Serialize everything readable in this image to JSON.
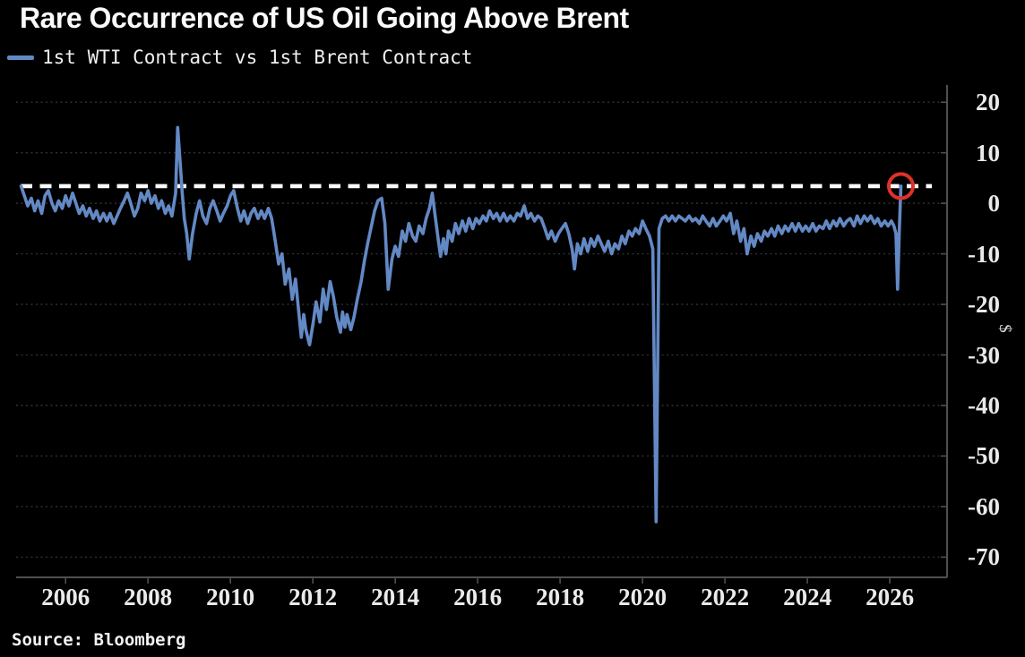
{
  "header": {
    "title": "Rare Occurrence of US Oil Going Above Brent"
  },
  "legend": {
    "label": "1st WTI Contract vs 1st Brent Contract",
    "swatch_color": "#6389c5"
  },
  "footer": {
    "source": "Source: Bloomberg"
  },
  "colors": {
    "background": "#000000",
    "line": "#6389c5",
    "reference_dash": "#fafafa",
    "gridline": "#333333",
    "axis": "#4f4f4f",
    "tick_label": "#eaeaea",
    "highlight_circle": "#e03127"
  },
  "chart_data": {
    "type": "line",
    "title": "Rare Occurrence of US Oil Going Above Brent",
    "ylabel": "$",
    "xlabel": "",
    "legend_position": "top-left",
    "grid": "dotted-horizontal",
    "xlim": [
      2004.8,
      2027.39
    ],
    "ylim": [
      -74,
      23.4
    ],
    "x_ticks": [
      2006,
      2008,
      2010,
      2012,
      2014,
      2016,
      2018,
      2020,
      2022,
      2024,
      2026
    ],
    "y_ticks": [
      20,
      10,
      0,
      -10,
      -20,
      -30,
      -40,
      -50,
      -60,
      -70
    ],
    "reference_line": {
      "value": 3.4,
      "style": "dashed",
      "color": "#fafafa"
    },
    "highlight_point": {
      "x": 2026.27,
      "y": 3.4,
      "marker": "red-circle"
    },
    "annotations": [
      "2008 spike to +15",
      "2011-2012 trough near -28",
      "April 2020 collapse to -63",
      "final point jumps to +3.4 above Brent"
    ],
    "series": [
      {
        "name": "1st WTI Contract vs 1st Brent Contract",
        "color": "#6389c5",
        "points": [
          [
            2004.92,
            3.4
          ],
          [
            2005.0,
            1.5
          ],
          [
            2005.08,
            -0.5
          ],
          [
            2005.17,
            1.0
          ],
          [
            2005.25,
            -1.5
          ],
          [
            2005.33,
            0.5
          ],
          [
            2005.42,
            -2.0
          ],
          [
            2005.5,
            1.5
          ],
          [
            2005.58,
            2.5
          ],
          [
            2005.67,
            0.0
          ],
          [
            2005.75,
            -1.5
          ],
          [
            2005.83,
            0.5
          ],
          [
            2005.92,
            -1.0
          ],
          [
            2006.0,
            1.5
          ],
          [
            2006.08,
            -0.5
          ],
          [
            2006.17,
            2.0
          ],
          [
            2006.25,
            0.0
          ],
          [
            2006.33,
            -2.0
          ],
          [
            2006.42,
            -0.5
          ],
          [
            2006.5,
            -2.5
          ],
          [
            2006.58,
            -1.0
          ],
          [
            2006.67,
            -3.0
          ],
          [
            2006.75,
            -1.5
          ],
          [
            2006.83,
            -3.5
          ],
          [
            2006.92,
            -2.0
          ],
          [
            2007.0,
            -3.5
          ],
          [
            2007.08,
            -2.0
          ],
          [
            2007.17,
            -4.0
          ],
          [
            2007.25,
            -2.5
          ],
          [
            2007.33,
            -1.0
          ],
          [
            2007.42,
            0.5
          ],
          [
            2007.5,
            2.0
          ],
          [
            2007.58,
            0.0
          ],
          [
            2007.67,
            -2.5
          ],
          [
            2007.75,
            -1.0
          ],
          [
            2007.83,
            2.0
          ],
          [
            2007.92,
            0.5
          ],
          [
            2008.0,
            2.5
          ],
          [
            2008.08,
            0.0
          ],
          [
            2008.17,
            1.5
          ],
          [
            2008.25,
            -1.0
          ],
          [
            2008.33,
            0.5
          ],
          [
            2008.42,
            -2.0
          ],
          [
            2008.5,
            -0.5
          ],
          [
            2008.58,
            -2.5
          ],
          [
            2008.67,
            2.0
          ],
          [
            2008.72,
            15.0
          ],
          [
            2008.78,
            8.0
          ],
          [
            2008.83,
            2.0
          ],
          [
            2008.88,
            -3.0
          ],
          [
            2008.94,
            -6.0
          ],
          [
            2009.0,
            -11.0
          ],
          [
            2009.08,
            -6.0
          ],
          [
            2009.17,
            -2.0
          ],
          [
            2009.25,
            0.5
          ],
          [
            2009.33,
            -2.5
          ],
          [
            2009.42,
            -4.0
          ],
          [
            2009.5,
            -1.0
          ],
          [
            2009.58,
            0.5
          ],
          [
            2009.67,
            -1.5
          ],
          [
            2009.75,
            -3.5
          ],
          [
            2009.83,
            -2.0
          ],
          [
            2009.92,
            -0.5
          ],
          [
            2010.0,
            1.5
          ],
          [
            2010.08,
            2.5
          ],
          [
            2010.17,
            -1.0
          ],
          [
            2010.25,
            -3.5
          ],
          [
            2010.33,
            -1.5
          ],
          [
            2010.42,
            -4.0
          ],
          [
            2010.5,
            -2.0
          ],
          [
            2010.58,
            -1.0
          ],
          [
            2010.67,
            -3.0
          ],
          [
            2010.75,
            -1.5
          ],
          [
            2010.83,
            -3.0
          ],
          [
            2010.92,
            -1.0
          ],
          [
            2011.0,
            -3.0
          ],
          [
            2011.08,
            -7.0
          ],
          [
            2011.17,
            -12.0
          ],
          [
            2011.25,
            -10.0
          ],
          [
            2011.33,
            -16.0
          ],
          [
            2011.42,
            -13.0
          ],
          [
            2011.5,
            -19.0
          ],
          [
            2011.58,
            -15.0
          ],
          [
            2011.67,
            -22.5
          ],
          [
            2011.72,
            -26.5
          ],
          [
            2011.78,
            -22.0
          ],
          [
            2011.83,
            -25.0
          ],
          [
            2011.92,
            -28.0
          ],
          [
            2012.0,
            -24.0
          ],
          [
            2012.08,
            -19.5
          ],
          [
            2012.17,
            -23.5
          ],
          [
            2012.25,
            -17.0
          ],
          [
            2012.33,
            -21.0
          ],
          [
            2012.42,
            -15.5
          ],
          [
            2012.5,
            -18.5
          ],
          [
            2012.58,
            -22.5
          ],
          [
            2012.67,
            -25.5
          ],
          [
            2012.72,
            -21.5
          ],
          [
            2012.78,
            -24.5
          ],
          [
            2012.83,
            -22.0
          ],
          [
            2012.92,
            -25.0
          ],
          [
            2013.0,
            -22.5
          ],
          [
            2013.08,
            -19.0
          ],
          [
            2013.17,
            -15.5
          ],
          [
            2013.25,
            -11.5
          ],
          [
            2013.33,
            -8.0
          ],
          [
            2013.42,
            -4.5
          ],
          [
            2013.5,
            -1.5
          ],
          [
            2013.58,
            0.5
          ],
          [
            2013.67,
            1.0
          ],
          [
            2013.75,
            -4.0
          ],
          [
            2013.83,
            -17.0
          ],
          [
            2013.92,
            -11.0
          ],
          [
            2014.0,
            -8.5
          ],
          [
            2014.08,
            -10.5
          ],
          [
            2014.17,
            -5.5
          ],
          [
            2014.25,
            -7.5
          ],
          [
            2014.33,
            -4.0
          ],
          [
            2014.42,
            -6.5
          ],
          [
            2014.5,
            -7.5
          ],
          [
            2014.58,
            -4.5
          ],
          [
            2014.67,
            -6.0
          ],
          [
            2014.75,
            -3.0
          ],
          [
            2014.83,
            -1.0
          ],
          [
            2014.9,
            2.0
          ],
          [
            2014.96,
            -2.0
          ],
          [
            2015.04,
            -7.0
          ],
          [
            2015.1,
            -10.5
          ],
          [
            2015.17,
            -7.0
          ],
          [
            2015.23,
            -10.0
          ],
          [
            2015.29,
            -5.5
          ],
          [
            2015.38,
            -7.5
          ],
          [
            2015.46,
            -4.0
          ],
          [
            2015.54,
            -6.0
          ],
          [
            2015.63,
            -3.5
          ],
          [
            2015.71,
            -5.5
          ],
          [
            2015.79,
            -3.0
          ],
          [
            2015.88,
            -5.0
          ],
          [
            2015.96,
            -3.0
          ],
          [
            2016.04,
            -4.0
          ],
          [
            2016.13,
            -2.5
          ],
          [
            2016.21,
            -3.5
          ],
          [
            2016.29,
            -1.5
          ],
          [
            2016.38,
            -3.0
          ],
          [
            2016.46,
            -2.0
          ],
          [
            2016.54,
            -3.5
          ],
          [
            2016.63,
            -2.0
          ],
          [
            2016.71,
            -3.5
          ],
          [
            2016.79,
            -2.5
          ],
          [
            2016.88,
            -3.5
          ],
          [
            2016.96,
            -2.0
          ],
          [
            2017.04,
            -2.5
          ],
          [
            2017.13,
            -0.5
          ],
          [
            2017.21,
            -3.0
          ],
          [
            2017.29,
            -2.0
          ],
          [
            2017.38,
            -3.5
          ],
          [
            2017.46,
            -2.5
          ],
          [
            2017.54,
            -3.0
          ],
          [
            2017.63,
            -5.0
          ],
          [
            2017.71,
            -7.0
          ],
          [
            2017.79,
            -5.5
          ],
          [
            2017.88,
            -7.5
          ],
          [
            2017.96,
            -6.0
          ],
          [
            2018.04,
            -5.0
          ],
          [
            2018.13,
            -4.0
          ],
          [
            2018.21,
            -6.0
          ],
          [
            2018.29,
            -9.0
          ],
          [
            2018.35,
            -13.0
          ],
          [
            2018.42,
            -8.0
          ],
          [
            2018.5,
            -10.0
          ],
          [
            2018.58,
            -7.0
          ],
          [
            2018.67,
            -9.5
          ],
          [
            2018.75,
            -7.0
          ],
          [
            2018.83,
            -8.5
          ],
          [
            2018.92,
            -6.5
          ],
          [
            2019.0,
            -8.0
          ],
          [
            2019.08,
            -9.5
          ],
          [
            2019.17,
            -7.5
          ],
          [
            2019.25,
            -10.0
          ],
          [
            2019.33,
            -8.0
          ],
          [
            2019.42,
            -9.0
          ],
          [
            2019.5,
            -6.5
          ],
          [
            2019.58,
            -8.0
          ],
          [
            2019.67,
            -5.5
          ],
          [
            2019.75,
            -6.5
          ],
          [
            2019.83,
            -5.0
          ],
          [
            2019.92,
            -6.0
          ],
          [
            2020.0,
            -3.5
          ],
          [
            2020.08,
            -5.0
          ],
          [
            2020.17,
            -6.5
          ],
          [
            2020.25,
            -9.0
          ],
          [
            2020.33,
            -63.0
          ],
          [
            2020.4,
            -5.0
          ],
          [
            2020.48,
            -3.0
          ],
          [
            2020.56,
            -2.5
          ],
          [
            2020.64,
            -3.5
          ],
          [
            2020.72,
            -2.5
          ],
          [
            2020.8,
            -3.5
          ],
          [
            2020.88,
            -2.5
          ],
          [
            2020.96,
            -3.0
          ],
          [
            2021.04,
            -3.5
          ],
          [
            2021.13,
            -2.5
          ],
          [
            2021.21,
            -3.5
          ],
          [
            2021.29,
            -3.0
          ],
          [
            2021.38,
            -4.0
          ],
          [
            2021.46,
            -2.5
          ],
          [
            2021.54,
            -3.5
          ],
          [
            2021.63,
            -4.5
          ],
          [
            2021.71,
            -3.0
          ],
          [
            2021.79,
            -4.5
          ],
          [
            2021.88,
            -3.5
          ],
          [
            2021.96,
            -2.5
          ],
          [
            2022.04,
            -3.5
          ],
          [
            2022.13,
            -2.0
          ],
          [
            2022.21,
            -6.0
          ],
          [
            2022.29,
            -3.5
          ],
          [
            2022.38,
            -7.5
          ],
          [
            2022.46,
            -5.0
          ],
          [
            2022.54,
            -10.0
          ],
          [
            2022.63,
            -6.5
          ],
          [
            2022.71,
            -8.5
          ],
          [
            2022.79,
            -6.0
          ],
          [
            2022.88,
            -7.5
          ],
          [
            2022.96,
            -5.5
          ],
          [
            2023.04,
            -6.5
          ],
          [
            2023.13,
            -5.0
          ],
          [
            2023.21,
            -6.5
          ],
          [
            2023.29,
            -4.5
          ],
          [
            2023.38,
            -6.0
          ],
          [
            2023.46,
            -4.5
          ],
          [
            2023.54,
            -5.5
          ],
          [
            2023.63,
            -4.0
          ],
          [
            2023.71,
            -5.5
          ],
          [
            2023.79,
            -4.0
          ],
          [
            2023.88,
            -5.5
          ],
          [
            2023.96,
            -4.5
          ],
          [
            2024.04,
            -5.5
          ],
          [
            2024.13,
            -4.0
          ],
          [
            2024.21,
            -5.5
          ],
          [
            2024.29,
            -4.5
          ],
          [
            2024.38,
            -5.0
          ],
          [
            2024.46,
            -3.5
          ],
          [
            2024.54,
            -5.0
          ],
          [
            2024.63,
            -3.5
          ],
          [
            2024.71,
            -4.5
          ],
          [
            2024.79,
            -3.0
          ],
          [
            2024.88,
            -4.5
          ],
          [
            2024.96,
            -3.5
          ],
          [
            2025.04,
            -3.0
          ],
          [
            2025.13,
            -4.5
          ],
          [
            2025.21,
            -2.5
          ],
          [
            2025.29,
            -4.0
          ],
          [
            2025.38,
            -2.5
          ],
          [
            2025.46,
            -3.5
          ],
          [
            2025.54,
            -2.5
          ],
          [
            2025.63,
            -4.0
          ],
          [
            2025.71,
            -3.0
          ],
          [
            2025.79,
            -4.5
          ],
          [
            2025.88,
            -3.5
          ],
          [
            2025.96,
            -4.5
          ],
          [
            2026.04,
            -3.5
          ],
          [
            2026.1,
            -4.5
          ],
          [
            2026.15,
            -6.0
          ],
          [
            2026.19,
            -17.0
          ],
          [
            2026.23,
            -6.0
          ],
          [
            2026.27,
            3.4
          ]
        ]
      }
    ]
  }
}
